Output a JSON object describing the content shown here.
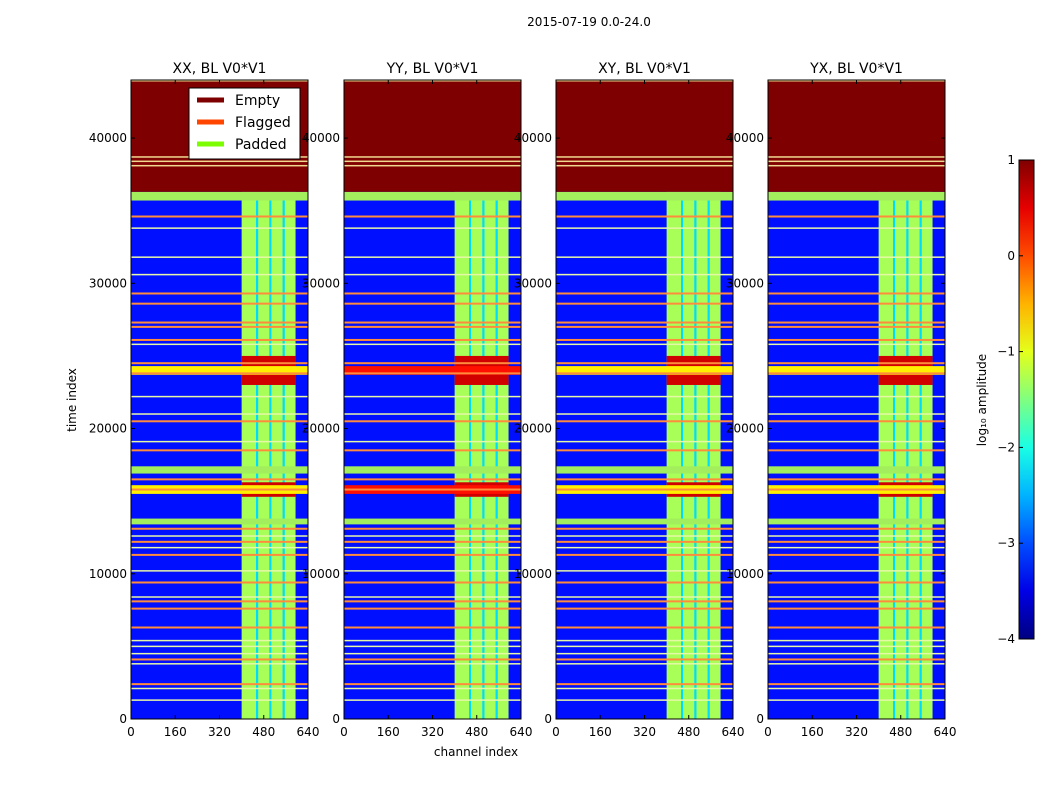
{
  "chart_data": {
    "type": "heatmap",
    "suptitle": "2015-07-19 0.0-24.0",
    "xlabel": "channel index",
    "ylabel": "time index",
    "xlim": [
      0,
      640
    ],
    "ylim": [
      0,
      44000
    ],
    "xticks": [
      0,
      160,
      320,
      480,
      640
    ],
    "yticks": [
      0,
      10000,
      20000,
      30000,
      40000
    ],
    "panels": [
      {
        "title": "XX, BL V0*V1",
        "pol": "XX"
      },
      {
        "title": "YY, BL V0*V1",
        "pol": "YY"
      },
      {
        "title": "XY, BL V0*V1",
        "pol": "XY"
      },
      {
        "title": "YX, BL V0*V1",
        "pol": "YX"
      }
    ],
    "legend": {
      "placement": "top",
      "entries": [
        {
          "label": "Empty",
          "color": "#7f0000"
        },
        {
          "label": "Flagged",
          "color": "#ff4500"
        },
        {
          "label": "Padded",
          "color": "#7cfc00"
        }
      ]
    },
    "colorbar": {
      "label": "log₁₀ amplitude",
      "range": [
        -4,
        1
      ],
      "ticks": [
        1,
        0,
        -1,
        -2,
        -3,
        -4
      ],
      "tick_labels": [
        "1",
        "0",
        "−1",
        "−2",
        "−3",
        "−4"
      ],
      "colormap": "jet"
    },
    "regions": {
      "empty_time_range": [
        36300,
        44000
      ],
      "padded_time_ranges": [
        [
          35700,
          36300
        ],
        [
          16900,
          17400
        ],
        [
          13400,
          13800
        ]
      ],
      "bright_channel_range": [
        400,
        595
      ],
      "bright_channel_gaps": [
        [
          452,
          460
        ],
        [
          500,
          508
        ],
        [
          548,
          556
        ]
      ],
      "saturated_time_ranges": [
        [
          23000,
          25000
        ],
        [
          15300,
          16300
        ]
      ],
      "flagged_rows": [
        34600,
        29300,
        28600,
        27300,
        27000,
        26100,
        24500,
        23800,
        20500,
        18500,
        16500,
        15800,
        13100,
        12200,
        11300,
        9400,
        8100,
        7600,
        6300,
        4100,
        2400
      ],
      "padded_rows": [
        38700,
        38400,
        38100,
        33800,
        31800,
        30600,
        25800,
        22200,
        21000,
        19100,
        12600,
        11800,
        10200,
        8400,
        5400,
        5000,
        4500,
        3800,
        2100,
        1300
      ]
    }
  }
}
